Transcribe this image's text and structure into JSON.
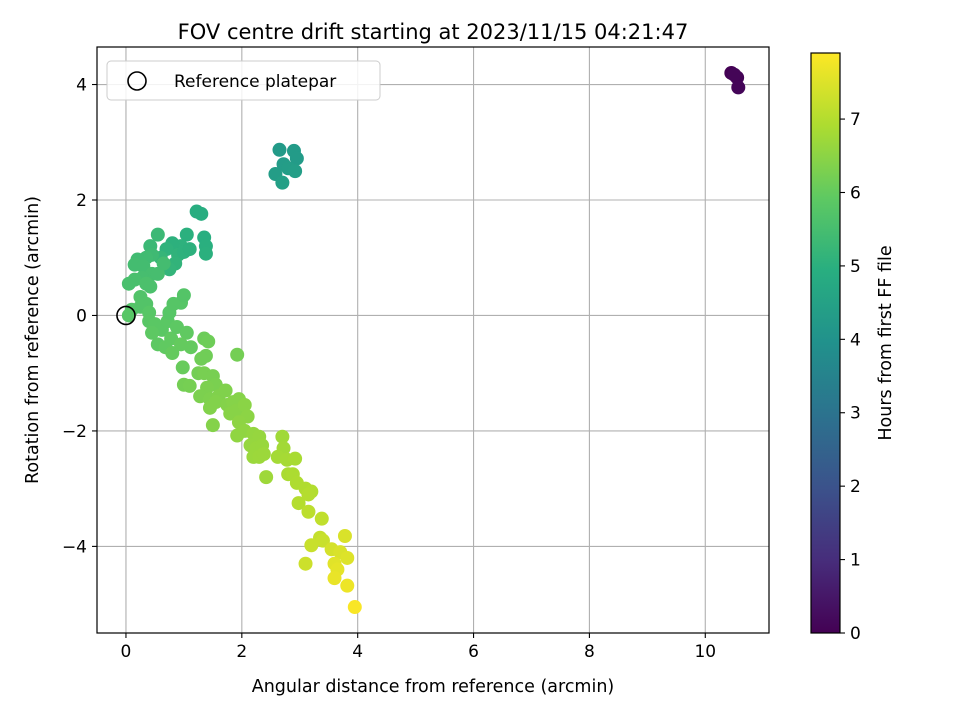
{
  "chart_data": {
    "type": "scatter",
    "title": "FOV centre drift starting at 2023/11/15 04:21:47",
    "xlabel": "Angular distance from reference (arcmin)",
    "ylabel": "Rotation from reference (arcmin)",
    "colorbar_label": "Hours from first FF file",
    "xlim": [
      -0.5,
      11.1
    ],
    "ylim": [
      -5.5,
      4.65
    ],
    "xticks": [
      0,
      2,
      4,
      6,
      8,
      10
    ],
    "yticks": [
      -4,
      -2,
      0,
      2,
      4
    ],
    "colorbar_range": [
      0,
      7.9
    ],
    "colorbar_ticks": [
      0,
      1,
      2,
      3,
      4,
      5,
      6,
      7
    ],
    "colormap": "viridis",
    "grid": true,
    "legend": {
      "placement": "upper-left",
      "entries": [
        "Reference platepar"
      ]
    },
    "reference_point": {
      "x": 0,
      "y": 0,
      "marker": "hollow-circle"
    },
    "series": [
      {
        "points": [
          {
            "x": 10.45,
            "y": 4.2,
            "c": 0.0
          },
          {
            "x": 10.55,
            "y": 4.12,
            "c": 0.05
          },
          {
            "x": 10.57,
            "y": 3.95,
            "c": 0.1
          },
          {
            "x": 10.5,
            "y": 4.17,
            "c": 0.08
          },
          {
            "x": 2.65,
            "y": 2.87,
            "c": 4.25
          },
          {
            "x": 2.9,
            "y": 2.85,
            "c": 4.28
          },
          {
            "x": 2.95,
            "y": 2.72,
            "c": 4.3
          },
          {
            "x": 2.72,
            "y": 2.62,
            "c": 4.32
          },
          {
            "x": 2.58,
            "y": 2.45,
            "c": 4.35
          },
          {
            "x": 2.8,
            "y": 2.55,
            "c": 4.37
          },
          {
            "x": 2.92,
            "y": 2.5,
            "c": 4.4
          },
          {
            "x": 2.7,
            "y": 2.3,
            "c": 4.42
          },
          {
            "x": 1.22,
            "y": 1.8,
            "c": 4.9
          },
          {
            "x": 1.3,
            "y": 1.76,
            "c": 4.92
          },
          {
            "x": 1.35,
            "y": 1.35,
            "c": 4.95
          },
          {
            "x": 1.05,
            "y": 1.4,
            "c": 5.0
          },
          {
            "x": 1.38,
            "y": 1.2,
            "c": 4.97
          },
          {
            "x": 1.38,
            "y": 1.07,
            "c": 5.0
          },
          {
            "x": 0.95,
            "y": 1.2,
            "c": 5.05
          },
          {
            "x": 0.8,
            "y": 1.25,
            "c": 5.02
          },
          {
            "x": 0.7,
            "y": 1.15,
            "c": 5.08
          },
          {
            "x": 0.9,
            "y": 1.05,
            "c": 5.1
          },
          {
            "x": 0.85,
            "y": 0.9,
            "c": 5.12
          },
          {
            "x": 0.75,
            "y": 0.8,
            "c": 5.15
          },
          {
            "x": 1.0,
            "y": 1.1,
            "c": 5.05
          },
          {
            "x": 1.1,
            "y": 1.15,
            "c": 5.02
          },
          {
            "x": 0.6,
            "y": 1.0,
            "c": 5.2
          },
          {
            "x": 0.55,
            "y": 1.4,
            "c": 5.3
          },
          {
            "x": 0.42,
            "y": 1.2,
            "c": 5.3
          },
          {
            "x": 0.45,
            "y": 1.05,
            "c": 5.35
          },
          {
            "x": 0.35,
            "y": 1.0,
            "c": 5.4
          },
          {
            "x": 0.2,
            "y": 0.97,
            "c": 5.4
          },
          {
            "x": 0.15,
            "y": 0.88,
            "c": 5.45
          },
          {
            "x": 0.3,
            "y": 0.85,
            "c": 5.45
          },
          {
            "x": 0.45,
            "y": 0.72,
            "c": 5.5
          },
          {
            "x": 0.28,
            "y": 0.65,
            "c": 5.5
          },
          {
            "x": 0.15,
            "y": 0.62,
            "c": 5.55
          },
          {
            "x": 0.05,
            "y": 0.55,
            "c": 5.55
          },
          {
            "x": 0.35,
            "y": 0.55,
            "c": 5.6
          },
          {
            "x": 0.42,
            "y": 0.5,
            "c": 5.6
          },
          {
            "x": 0.55,
            "y": 0.72,
            "c": 5.5
          },
          {
            "x": 0.65,
            "y": 0.9,
            "c": 5.45
          },
          {
            "x": 0.25,
            "y": 0.32,
            "c": 5.7
          },
          {
            "x": 0.35,
            "y": 0.2,
            "c": 5.72
          },
          {
            "x": 0.1,
            "y": 0.1,
            "c": 5.75
          },
          {
            "x": 0.25,
            "y": 0.15,
            "c": 5.72
          },
          {
            "x": 0.05,
            "y": 0.0,
            "c": 5.8
          },
          {
            "x": 0.4,
            "y": 0.05,
            "c": 5.8
          },
          {
            "x": 0.4,
            "y": -0.1,
            "c": 5.82
          },
          {
            "x": 0.5,
            "y": -0.15,
            "c": 5.85
          },
          {
            "x": 0.62,
            "y": -0.25,
            "c": 5.85
          },
          {
            "x": 0.45,
            "y": -0.3,
            "c": 5.9
          },
          {
            "x": 0.55,
            "y": -0.5,
            "c": 5.9
          },
          {
            "x": 0.68,
            "y": -0.55,
            "c": 5.95
          },
          {
            "x": 0.78,
            "y": -0.4,
            "c": 5.95
          },
          {
            "x": 0.8,
            "y": -0.65,
            "c": 6.0
          },
          {
            "x": 0.72,
            "y": -0.1,
            "c": 5.85
          },
          {
            "x": 0.75,
            "y": 0.05,
            "c": 5.8
          },
          {
            "x": 0.82,
            "y": 0.2,
            "c": 5.78
          },
          {
            "x": 0.95,
            "y": 0.22,
            "c": 5.78
          },
          {
            "x": 1.0,
            "y": 0.35,
            "c": 5.75
          },
          {
            "x": 0.88,
            "y": -0.2,
            "c": 5.9
          },
          {
            "x": 1.05,
            "y": -0.3,
            "c": 5.95
          },
          {
            "x": 1.12,
            "y": -0.55,
            "c": 6.0
          },
          {
            "x": 0.95,
            "y": -0.5,
            "c": 6.0
          },
          {
            "x": 0.98,
            "y": -0.9,
            "c": 6.05
          },
          {
            "x": 1.35,
            "y": -0.4,
            "c": 6.1
          },
          {
            "x": 1.42,
            "y": -0.45,
            "c": 6.12
          },
          {
            "x": 1.38,
            "y": -0.7,
            "c": 6.15
          },
          {
            "x": 1.3,
            "y": -0.75,
            "c": 6.15
          },
          {
            "x": 1.92,
            "y": -0.68,
            "c": 6.2
          },
          {
            "x": 1.25,
            "y": -1.0,
            "c": 6.2
          },
          {
            "x": 1.0,
            "y": -1.2,
            "c": 6.2
          },
          {
            "x": 1.1,
            "y": -1.22,
            "c": 6.22
          },
          {
            "x": 1.35,
            "y": -1.0,
            "c": 6.25
          },
          {
            "x": 1.5,
            "y": -1.05,
            "c": 6.25
          },
          {
            "x": 1.55,
            "y": -1.2,
            "c": 6.28
          },
          {
            "x": 1.4,
            "y": -1.25,
            "c": 6.3
          },
          {
            "x": 1.28,
            "y": -1.4,
            "c": 6.3
          },
          {
            "x": 1.45,
            "y": -1.45,
            "c": 6.32
          },
          {
            "x": 1.6,
            "y": -1.4,
            "c": 6.35
          },
          {
            "x": 1.72,
            "y": -1.3,
            "c": 6.35
          },
          {
            "x": 1.45,
            "y": -1.6,
            "c": 6.38
          },
          {
            "x": 1.55,
            "y": -1.5,
            "c": 6.38
          },
          {
            "x": 1.5,
            "y": -1.9,
            "c": 6.4
          },
          {
            "x": 1.75,
            "y": -1.55,
            "c": 6.4
          },
          {
            "x": 1.85,
            "y": -1.5,
            "c": 6.42
          },
          {
            "x": 1.95,
            "y": -1.45,
            "c": 6.42
          },
          {
            "x": 1.8,
            "y": -1.7,
            "c": 6.45
          },
          {
            "x": 1.9,
            "y": -1.65,
            "c": 6.45
          },
          {
            "x": 2.05,
            "y": -1.55,
            "c": 6.48
          },
          {
            "x": 2.1,
            "y": -1.75,
            "c": 6.5
          },
          {
            "x": 1.95,
            "y": -1.85,
            "c": 6.52
          },
          {
            "x": 1.92,
            "y": -2.08,
            "c": 6.55
          },
          {
            "x": 2.05,
            "y": -2.0,
            "c": 6.55
          },
          {
            "x": 2.2,
            "y": -2.05,
            "c": 6.6
          },
          {
            "x": 2.3,
            "y": -2.1,
            "c": 6.62
          },
          {
            "x": 2.15,
            "y": -2.25,
            "c": 6.62
          },
          {
            "x": 2.25,
            "y": -2.3,
            "c": 6.65
          },
          {
            "x": 2.35,
            "y": -2.25,
            "c": 6.65
          },
          {
            "x": 2.2,
            "y": -2.45,
            "c": 6.68
          },
          {
            "x": 2.3,
            "y": -2.45,
            "c": 6.7
          },
          {
            "x": 2.38,
            "y": -2.4,
            "c": 6.7
          },
          {
            "x": 2.42,
            "y": -2.8,
            "c": 6.72
          },
          {
            "x": 2.7,
            "y": -2.1,
            "c": 6.75
          },
          {
            "x": 2.72,
            "y": -2.3,
            "c": 6.78
          },
          {
            "x": 2.62,
            "y": -2.45,
            "c": 6.8
          },
          {
            "x": 2.78,
            "y": -2.5,
            "c": 6.82
          },
          {
            "x": 2.92,
            "y": -2.48,
            "c": 6.85
          },
          {
            "x": 2.8,
            "y": -2.75,
            "c": 6.88
          },
          {
            "x": 2.88,
            "y": -2.75,
            "c": 6.9
          },
          {
            "x": 2.95,
            "y": -2.9,
            "c": 6.92
          },
          {
            "x": 3.1,
            "y": -3.0,
            "c": 6.95
          },
          {
            "x": 3.2,
            "y": -3.05,
            "c": 6.97
          },
          {
            "x": 3.15,
            "y": -3.1,
            "c": 7.0
          },
          {
            "x": 2.98,
            "y": -3.25,
            "c": 7.0
          },
          {
            "x": 3.15,
            "y": -3.4,
            "c": 7.1
          },
          {
            "x": 3.38,
            "y": -3.52,
            "c": 7.15
          },
          {
            "x": 3.35,
            "y": -3.85,
            "c": 7.2
          },
          {
            "x": 3.2,
            "y": -3.98,
            "c": 7.25
          },
          {
            "x": 3.4,
            "y": -3.9,
            "c": 7.25
          },
          {
            "x": 3.1,
            "y": -4.3,
            "c": 7.3
          },
          {
            "x": 3.55,
            "y": -4.05,
            "c": 7.4
          },
          {
            "x": 3.7,
            "y": -4.1,
            "c": 7.45
          },
          {
            "x": 3.78,
            "y": -3.82,
            "c": 7.45
          },
          {
            "x": 3.82,
            "y": -4.2,
            "c": 7.5
          },
          {
            "x": 3.6,
            "y": -4.3,
            "c": 7.55
          },
          {
            "x": 3.65,
            "y": -4.4,
            "c": 7.6
          },
          {
            "x": 3.6,
            "y": -4.55,
            "c": 7.65
          },
          {
            "x": 3.82,
            "y": -4.68,
            "c": 7.7
          },
          {
            "x": 3.95,
            "y": -5.05,
            "c": 7.85
          }
        ]
      }
    ]
  }
}
